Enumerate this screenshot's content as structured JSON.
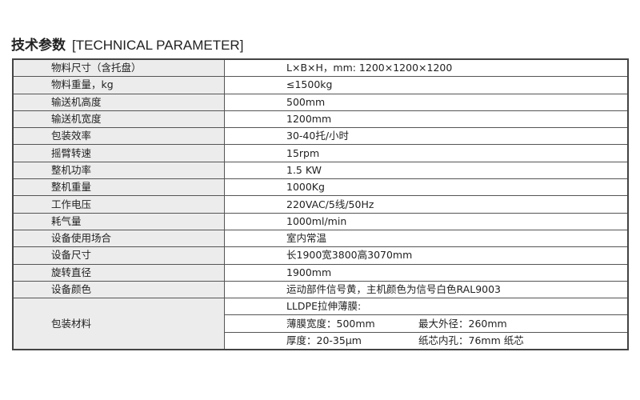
{
  "title": {
    "cn": "技术参数",
    "en": "[TECHNICAL PARAMETER]"
  },
  "rows": [
    {
      "label": "物料尺寸（含托盘）",
      "value": "L×B×H，mm: 1200×1200×1200"
    },
    {
      "label": "物料重量，kg",
      "value": "≤1500kg"
    },
    {
      "label": "输送机高度",
      "value": "500mm"
    },
    {
      "label": "输送机宽度",
      "value": "1200mm"
    },
    {
      "label": "包装效率",
      "value": "30-40托/小时"
    },
    {
      "label": "摇臂转速",
      "value": "15rpm"
    },
    {
      "label": "整机功率",
      "value": "1.5 KW"
    },
    {
      "label": "整机重量",
      "value": "1000Kg"
    },
    {
      "label": "工作电压",
      "value": "220VAC/5线/50Hz"
    },
    {
      "label": "耗气量",
      "value": "1000ml/min"
    },
    {
      "label": "设备使用场合",
      "value": "室内常温"
    },
    {
      "label": "设备尺寸",
      "value": "长1900宽3800高3070mm"
    },
    {
      "label": "旋转直径",
      "value": "1900mm"
    },
    {
      "label": "设备颜色",
      "value": "运动部件信号黄，主机颜色为信号白色RAL9003"
    }
  ],
  "packing": {
    "label": "包装材料",
    "line1": "LLDPE拉伸薄膜:",
    "width": "薄膜宽度：500mm",
    "outer": "最大外径：260mm",
    "thickness": "厚度：20-35μm",
    "core": "纸芯内孔：76mm 纸芯"
  }
}
